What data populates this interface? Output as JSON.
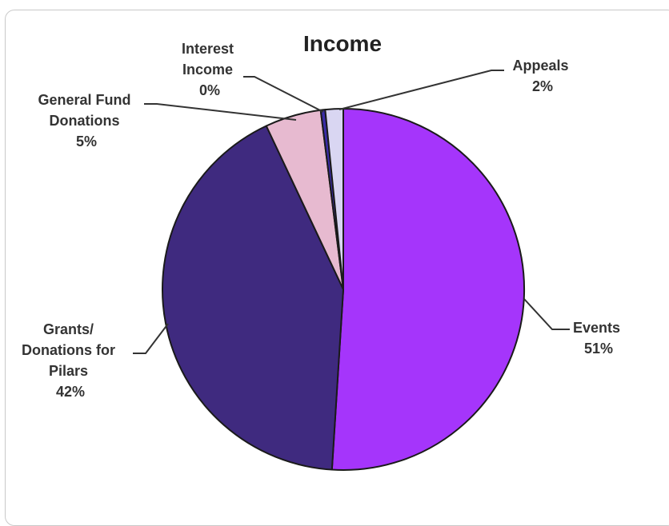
{
  "chart_data": {
    "type": "pie",
    "title": "Income",
    "slices": [
      {
        "label": "Events",
        "percent_label": "51%",
        "value": 51,
        "color": "#a535fb"
      },
      {
        "label": "Grants/ Donations for Pilars",
        "percent_label": "42%",
        "value": 42,
        "color": "#3f2a7f"
      },
      {
        "label": "General Fund Donations",
        "percent_label": "5%",
        "value": 5,
        "color": "#e7bad0"
      },
      {
        "label": "Interest Income",
        "percent_label": "0%",
        "value": 0.4,
        "color": "#3a2ca8"
      },
      {
        "label": "Appeals",
        "percent_label": "2%",
        "value": 1.6,
        "color": "#d9d6f2"
      }
    ],
    "legend": "none"
  },
  "labels": {
    "events": [
      "Events",
      "51%"
    ],
    "grants": [
      "Grants/",
      "Donations for",
      "Pilars",
      "42%"
    ],
    "general": [
      "General Fund",
      "Donations",
      "5%"
    ],
    "interest": [
      "Interest",
      "Income",
      "0%"
    ],
    "appeals": [
      "Appeals",
      "2%"
    ]
  }
}
